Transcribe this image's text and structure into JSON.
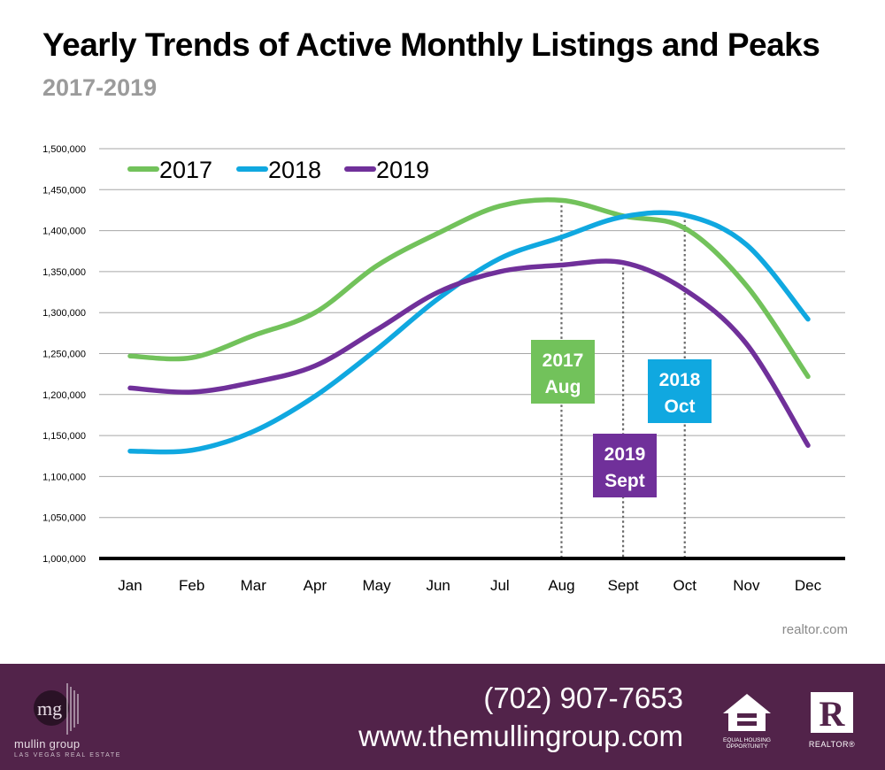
{
  "header": {
    "title": "Yearly Trends of Active Monthly Listings and Peaks",
    "subtitle": "2017-2019"
  },
  "chart_data": {
    "type": "line",
    "title": "Yearly Trends of Active Monthly Listings and Peaks",
    "subtitle": "2017-2019",
    "categories": [
      "Jan",
      "Feb",
      "Mar",
      "Apr",
      "May",
      "Jun",
      "Jul",
      "Aug",
      "Sept",
      "Oct",
      "Nov",
      "Dec"
    ],
    "ylim": [
      1000000,
      1500000
    ],
    "yticks": [
      1000000,
      1050000,
      1100000,
      1150000,
      1200000,
      1250000,
      1300000,
      1350000,
      1400000,
      1450000,
      1500000
    ],
    "ytick_labels": [
      "1,000,000",
      "1,050,000",
      "1,100,000",
      "1,150,000",
      "1,200,000",
      "1,250,000",
      "1,300,000",
      "1,350,000",
      "1,400,000",
      "1,450,000",
      "1,500,000"
    ],
    "grid": true,
    "legend_position": "top-left",
    "series": [
      {
        "name": "2017",
        "color": "#72c25b",
        "values": [
          1247000,
          1245000,
          1272000,
          1300000,
          1357000,
          1397000,
          1430000,
          1437000,
          1418000,
          1403000,
          1333000,
          1222000
        ]
      },
      {
        "name": "2018",
        "color": "#10a8e0",
        "values": [
          1131000,
          1132000,
          1155000,
          1198000,
          1255000,
          1317000,
          1366000,
          1392000,
          1417000,
          1419000,
          1383000,
          1292000
        ]
      },
      {
        "name": "2019",
        "color": "#70309a",
        "values": [
          1208000,
          1203000,
          1215000,
          1235000,
          1279000,
          1325000,
          1350000,
          1358000,
          1361000,
          1328000,
          1262000,
          1138000
        ]
      }
    ],
    "peaks": [
      {
        "series": "2017",
        "month": "Aug",
        "year_label": "2017",
        "month_label": "Aug",
        "color": "#72c25b"
      },
      {
        "series": "2018",
        "month": "Oct",
        "year_label": "2018",
        "month_label": "Oct",
        "color": "#10a8e0"
      },
      {
        "series": "2019",
        "month": "Sept",
        "year_label": "2019",
        "month_label": "Sept",
        "color": "#70309a"
      }
    ]
  },
  "source": "realtor.com",
  "footer": {
    "logo_mark": "mg",
    "brand_name": "mullin group",
    "brand_tagline": "LAS VEGAS REAL ESTATE",
    "phone": "(702) 907-7653",
    "website": "www.themullingroup.com",
    "badge_eho_text": "EQUAL HOUSING OPPORTUNITY",
    "badge_realtor_letter": "R",
    "badge_realtor_text": "REALTOR®",
    "background_color": "#52234a"
  }
}
